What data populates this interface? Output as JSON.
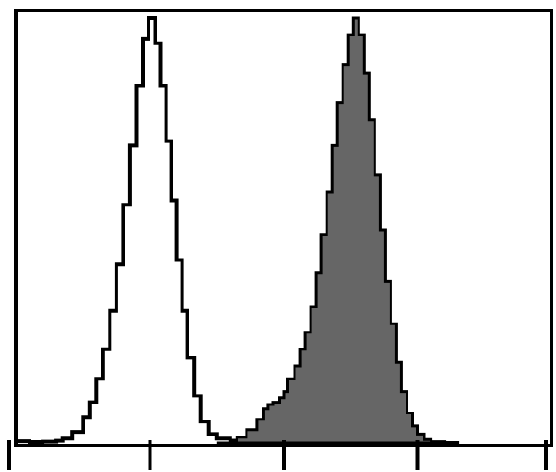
{
  "chart_data": {
    "type": "area",
    "title": "",
    "xlabel": "",
    "ylabel": "",
    "x_scale": "log",
    "xlim": [
      0,
      4
    ],
    "ylim": [
      0,
      100
    ],
    "x_major_ticks": [
      0,
      1,
      2,
      3,
      4
    ],
    "grid": false,
    "legend": "none",
    "series": [
      {
        "style": "outline",
        "stroke_color": "#000000",
        "fill_color": "none",
        "points": [
          [
            0.0,
            0.4
          ],
          [
            0.1,
            0.2
          ],
          [
            0.2,
            0.3
          ],
          [
            0.3,
            0.5
          ],
          [
            0.35,
            1.0
          ],
          [
            0.42,
            2.5
          ],
          [
            0.5,
            6.0
          ],
          [
            0.55,
            9.5
          ],
          [
            0.6,
            15.0
          ],
          [
            0.65,
            22.0
          ],
          [
            0.7,
            31.0
          ],
          [
            0.75,
            42.0
          ],
          [
            0.8,
            56.0
          ],
          [
            0.85,
            70.0
          ],
          [
            0.9,
            84.0
          ],
          [
            0.95,
            95.0
          ],
          [
            0.99,
            100.0
          ],
          [
            1.04,
            94.0
          ],
          [
            1.08,
            84.0
          ],
          [
            1.12,
            71.0
          ],
          [
            1.16,
            57.0
          ],
          [
            1.2,
            43.0
          ],
          [
            1.24,
            31.0
          ],
          [
            1.28,
            20.0
          ],
          [
            1.33,
            11.0
          ],
          [
            1.38,
            5.0
          ],
          [
            1.44,
            2.0
          ],
          [
            1.5,
            1.0
          ],
          [
            1.6,
            0.5
          ],
          [
            1.7,
            0.2
          ],
          [
            1.8,
            0.2
          ],
          [
            1.9,
            0.1
          ],
          [
            2.0,
            0.0
          ]
        ]
      },
      {
        "style": "filled",
        "stroke_color": "#000000",
        "fill_color": "#666666",
        "points": [
          [
            1.5,
            0.0
          ],
          [
            1.6,
            0.6
          ],
          [
            1.65,
            1.3
          ],
          [
            1.72,
            3.0
          ],
          [
            1.8,
            5.5
          ],
          [
            1.85,
            8.0
          ],
          [
            1.88,
            9.0
          ],
          [
            1.92,
            9.5
          ],
          [
            1.97,
            10.5
          ],
          [
            2.0,
            12.0
          ],
          [
            2.03,
            15.0
          ],
          [
            2.08,
            18.0
          ],
          [
            2.12,
            22.0
          ],
          [
            2.16,
            26.0
          ],
          [
            2.2,
            32.0
          ],
          [
            2.24,
            40.0
          ],
          [
            2.28,
            49.0
          ],
          [
            2.32,
            59.0
          ],
          [
            2.36,
            70.0
          ],
          [
            2.4,
            80.0
          ],
          [
            2.44,
            89.0
          ],
          [
            2.48,
            96.0
          ],
          [
            2.52,
            100.0
          ],
          [
            2.56,
            96.0
          ],
          [
            2.6,
            87.0
          ],
          [
            2.64,
            76.0
          ],
          [
            2.68,
            63.0
          ],
          [
            2.72,
            50.0
          ],
          [
            2.76,
            38.0
          ],
          [
            2.8,
            28.0
          ],
          [
            2.84,
            19.0
          ],
          [
            2.88,
            12.0
          ],
          [
            2.92,
            7.0
          ],
          [
            2.96,
            4.0
          ],
          [
            3.0,
            2.0
          ],
          [
            3.05,
            0.8
          ],
          [
            3.1,
            0.3
          ],
          [
            3.2,
            0.1
          ],
          [
            3.3,
            0.0
          ]
        ]
      }
    ]
  }
}
